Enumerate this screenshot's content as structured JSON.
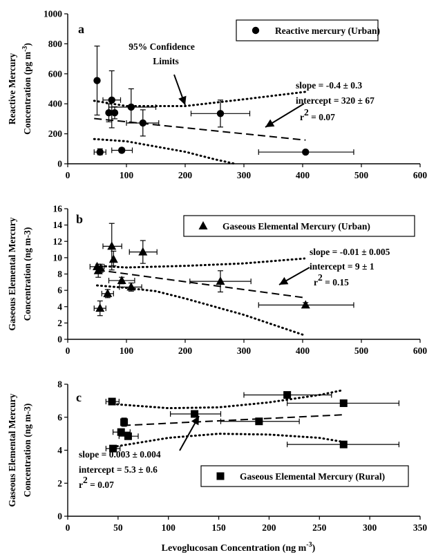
{
  "chart_data": [
    {
      "type": "scatter",
      "panel_label": "a",
      "ylabel": [
        "Reactive Mercury",
        "Concentration (pg m",
        "-3",
        ")"
      ],
      "xlim": [
        0,
        600
      ],
      "xticks": [
        "0",
        "100",
        "200",
        "300",
        "400",
        "500",
        "600"
      ],
      "ylim": [
        0,
        1000
      ],
      "yticks": [
        "0",
        "200",
        "400",
        "600",
        "800",
        "1000"
      ],
      "legend": {
        "label": "Reactive mercury (Urban)",
        "marker": "circle",
        "position": "top-right"
      },
      "annotation": {
        "line1": "95% Confidence",
        "line2": "Limits"
      },
      "regression_text": {
        "slope": "slope = -0.4 ± 0.3",
        "intercept": "intercept = 320 ± 67",
        "r2_base": "r",
        "r2_sup": "2",
        "r2_val": " = 0.07"
      },
      "series": [
        {
          "name": "Reactive mercury (Urban)",
          "marker": "circle",
          "points": [
            {
              "x": 50,
              "y": 555,
              "ylo": 325,
              "yhi": 785
            },
            {
              "x": 55,
              "y": 78,
              "ylo": 60,
              "yhi": 100,
              "xlo": 45,
              "xhi": 65
            },
            {
              "x": 70,
              "y": 340,
              "ylo": 280,
              "yhi": 400
            },
            {
              "x": 75,
              "y": 425,
              "ylo": 240,
              "yhi": 620,
              "xlo": 60,
              "xhi": 90
            },
            {
              "x": 80,
              "y": 340,
              "ylo": 300,
              "yhi": 380
            },
            {
              "x": 92,
              "y": 90,
              "ylo": 75,
              "yhi": 105,
              "xlo": 75,
              "xhi": 110
            },
            {
              "x": 108,
              "y": 378,
              "ylo": 275,
              "yhi": 500,
              "xlo": 70,
              "xhi": 150
            },
            {
              "x": 128,
              "y": 272,
              "ylo": 185,
              "yhi": 360,
              "xlo": 100,
              "xhi": 155
            },
            {
              "x": 260,
              "y": 335,
              "ylo": 245,
              "yhi": 425,
              "xlo": 210,
              "xhi": 310
            },
            {
              "x": 405,
              "y": 78,
              "xlo": 325,
              "xhi": 487
            }
          ]
        }
      ],
      "fit": {
        "x": [
          45,
          405
        ],
        "y": [
          302,
          158
        ]
      },
      "ci_upper": {
        "x": [
          45,
          100,
          200,
          300,
          405
        ],
        "y": [
          420,
          385,
          385,
          430,
          480
        ]
      },
      "ci_lower": {
        "x": [
          45,
          100,
          200,
          250,
          285
        ],
        "y": [
          165,
          150,
          80,
          30,
          0
        ]
      }
    },
    {
      "type": "scatter",
      "panel_label": "b",
      "ylabel": [
        "Gaseous Elemental Mercury",
        "Concentration (ng m-3)"
      ],
      "xlim": [
        0,
        600
      ],
      "xticks": [
        "0",
        "100",
        "200",
        "300",
        "400",
        "500",
        "600"
      ],
      "ylim": [
        0,
        16
      ],
      "yticks": [
        "0",
        "2",
        "4",
        "6",
        "8",
        "10",
        "12",
        "14",
        "16"
      ],
      "legend": {
        "label": "Gaseous Elemental Mercury (Urban)",
        "marker": "triangle",
        "position": "top-right"
      },
      "regression_text": {
        "slope": "slope = -0.01 ± 0.005",
        "intercept": "intercept = 9 ± 1",
        "r2_base": "r",
        "r2_sup": "2",
        "r2_val": " = 0.15"
      },
      "series": [
        {
          "name": "Gaseous Elemental Mercury (Urban)",
          "marker": "triangle",
          "points": [
            {
              "x": 50,
              "y": 8.9,
              "xlo": 38,
              "xhi": 62
            },
            {
              "x": 52,
              "y": 8.4,
              "ylo": 7.6,
              "yhi": 9.2
            },
            {
              "x": 55,
              "y": 3.8,
              "ylo": 2.9,
              "yhi": 4.7,
              "xlo": 45,
              "xhi": 65
            },
            {
              "x": 56,
              "y": 8.7,
              "ylo": 8.2,
              "yhi": 9.2
            },
            {
              "x": 68,
              "y": 5.6,
              "ylo": 5.1,
              "yhi": 6.1,
              "xlo": 58,
              "xhi": 78
            },
            {
              "x": 75,
              "y": 11.4,
              "ylo": 8.5,
              "yhi": 14.2,
              "xlo": 60,
              "xhi": 92
            },
            {
              "x": 78,
              "y": 9.8,
              "ylo": 9.0,
              "yhi": 10.8
            },
            {
              "x": 92,
              "y": 7.2,
              "ylo": 6.8,
              "yhi": 7.6,
              "xlo": 70,
              "xhi": 114
            },
            {
              "x": 108,
              "y": 6.4,
              "ylo": 5.9,
              "yhi": 6.9,
              "xlo": 88,
              "xhi": 126
            },
            {
              "x": 128,
              "y": 10.7,
              "ylo": 9.3,
              "yhi": 12.1,
              "xlo": 105,
              "xhi": 152
            },
            {
              "x": 260,
              "y": 7.1,
              "ylo": 5.8,
              "yhi": 8.4,
              "xlo": 208,
              "xhi": 312
            },
            {
              "x": 405,
              "y": 4.2,
              "ylo": 3.9,
              "yhi": 4.5,
              "xlo": 325,
              "xhi": 487
            }
          ]
        }
      ],
      "fit": {
        "x": [
          50,
          403
        ],
        "y": [
          8.5,
          5.1
        ]
      },
      "ci_upper": {
        "x": [
          50,
          100,
          150,
          200,
          300,
          403
        ],
        "y": [
          9.0,
          8.8,
          8.9,
          9.0,
          9.3,
          9.9
        ]
      },
      "ci_lower": {
        "x": [
          50,
          100,
          150,
          200,
          300,
          403
        ],
        "y": [
          6.6,
          6.3,
          5.9,
          5.0,
          3.0,
          0.5
        ]
      }
    },
    {
      "type": "scatter",
      "panel_label": "c",
      "ylabel": [
        "Gaseous Elemental Mercury",
        "Concentration (ng m-3)"
      ],
      "xlabel": [
        "Levoglucosan Concentration (ng m",
        "-3",
        ")"
      ],
      "xlim": [
        0,
        350
      ],
      "xticks": [
        "0",
        "50",
        "100",
        "150",
        "200",
        "250",
        "300",
        "350"
      ],
      "ylim": [
        0,
        8
      ],
      "yticks": [
        "0",
        "2",
        "4",
        "6",
        "8"
      ],
      "legend": {
        "label": "Gaseous Elemental Mercury (Rural)",
        "marker": "square",
        "position": "bottom-right"
      },
      "regression_text": {
        "slope": "slope = 0.003 ± 0.004",
        "intercept": "intercept = 5.3 ± 0.6",
        "r2_base": "r",
        "r2_sup": "2",
        "r2_val": " = 0.07"
      },
      "series": [
        {
          "name": "Gaseous Elemental Mercury (Rural)",
          "marker": "square",
          "points": [
            {
              "x": 44,
              "y": 6.95,
              "xlo": 38,
              "xhi": 51
            },
            {
              "x": 45,
              "y": 4.1,
              "xlo": 38,
              "xhi": 52
            },
            {
              "x": 53,
              "y": 5.1,
              "xlo": 45,
              "xhi": 62
            },
            {
              "x": 56,
              "y": 5.7,
              "ylo": 5.45,
              "yhi": 5.95
            },
            {
              "x": 60,
              "y": 4.85,
              "xlo": 51,
              "xhi": 70
            },
            {
              "x": 126,
              "y": 6.2,
              "xlo": 102,
              "xhi": 152
            },
            {
              "x": 190,
              "y": 5.75,
              "xlo": 152,
              "xhi": 230
            },
            {
              "x": 218,
              "y": 7.35,
              "xlo": 175,
              "xhi": 262
            },
            {
              "x": 274,
              "y": 6.85,
              "xlo": 218,
              "xhi": 329
            },
            {
              "x": 274,
              "y": 4.35,
              "xlo": 218,
              "xhi": 329
            }
          ]
        }
      ],
      "fit": {
        "x": [
          55,
          274
        ],
        "y": [
          5.5,
          6.15
        ]
      },
      "ci_upper": {
        "x": [
          45,
          100,
          150,
          200,
          250,
          274
        ],
        "y": [
          6.8,
          6.55,
          6.6,
          6.9,
          7.35,
          7.65
        ]
      },
      "ci_lower": {
        "x": [
          45,
          100,
          150,
          200,
          250,
          274
        ],
        "y": [
          4.2,
          4.75,
          5.0,
          4.95,
          4.75,
          4.5
        ]
      }
    }
  ]
}
